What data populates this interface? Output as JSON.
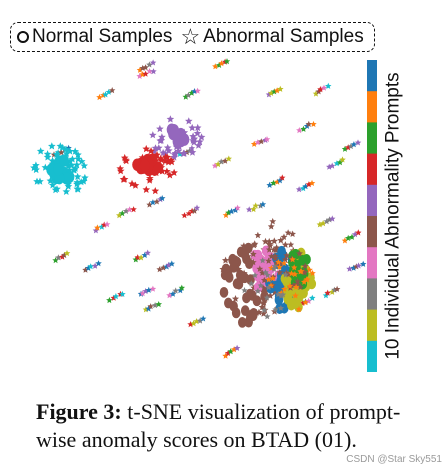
{
  "legend": {
    "normal_label": "Normal Samples",
    "abnormal_label": "Abnormal Samples",
    "normal_marker": "circle-marker",
    "abnormal_marker": "star-marker"
  },
  "colorbar": {
    "label": "10 Individual Abnormality Prompts",
    "colors": [
      "#1f77b4",
      "#ff7f0e",
      "#2ca02c",
      "#d62728",
      "#9467bd",
      "#8c564b",
      "#e377c2",
      "#7f7f7f",
      "#bcbd22",
      "#17becf"
    ]
  },
  "caption": {
    "label": "Figure 3:",
    "text": "t-SNE visualization of prompt-wise anomaly scores on BTAD (01)."
  },
  "watermark": "CSDN @Star Sky551",
  "chart_data": {
    "type": "scatter",
    "title": "",
    "xlabel": "",
    "ylabel": "",
    "axes_shown": false,
    "description_only": true,
    "legend": [
      "Normal Samples",
      "Abnormal Samples"
    ],
    "legend_placement": "top"
  }
}
